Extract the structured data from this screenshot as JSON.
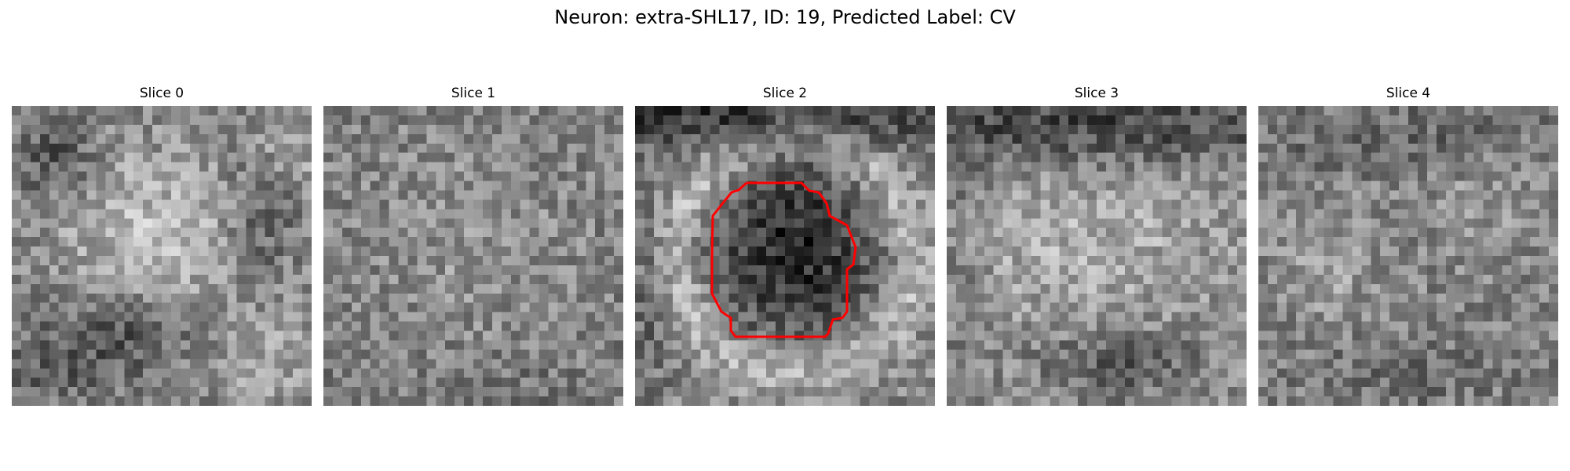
{
  "figure": {
    "suptitle": "Neuron: extra-SHL17, ID: 19, Predicted Label: CV"
  },
  "panels": [
    {
      "title": "Slice 0",
      "has_roi": false
    },
    {
      "title": "Slice 1",
      "has_roi": false
    },
    {
      "title": "Slice 2",
      "has_roi": true
    },
    {
      "title": "Slice 3",
      "has_roi": false
    },
    {
      "title": "Slice 4",
      "has_roi": false
    }
  ],
  "image": {
    "grid_size": 32,
    "colormap": "gray"
  },
  "roi": {
    "color": "#ff0000",
    "slice_index": 2
  }
}
